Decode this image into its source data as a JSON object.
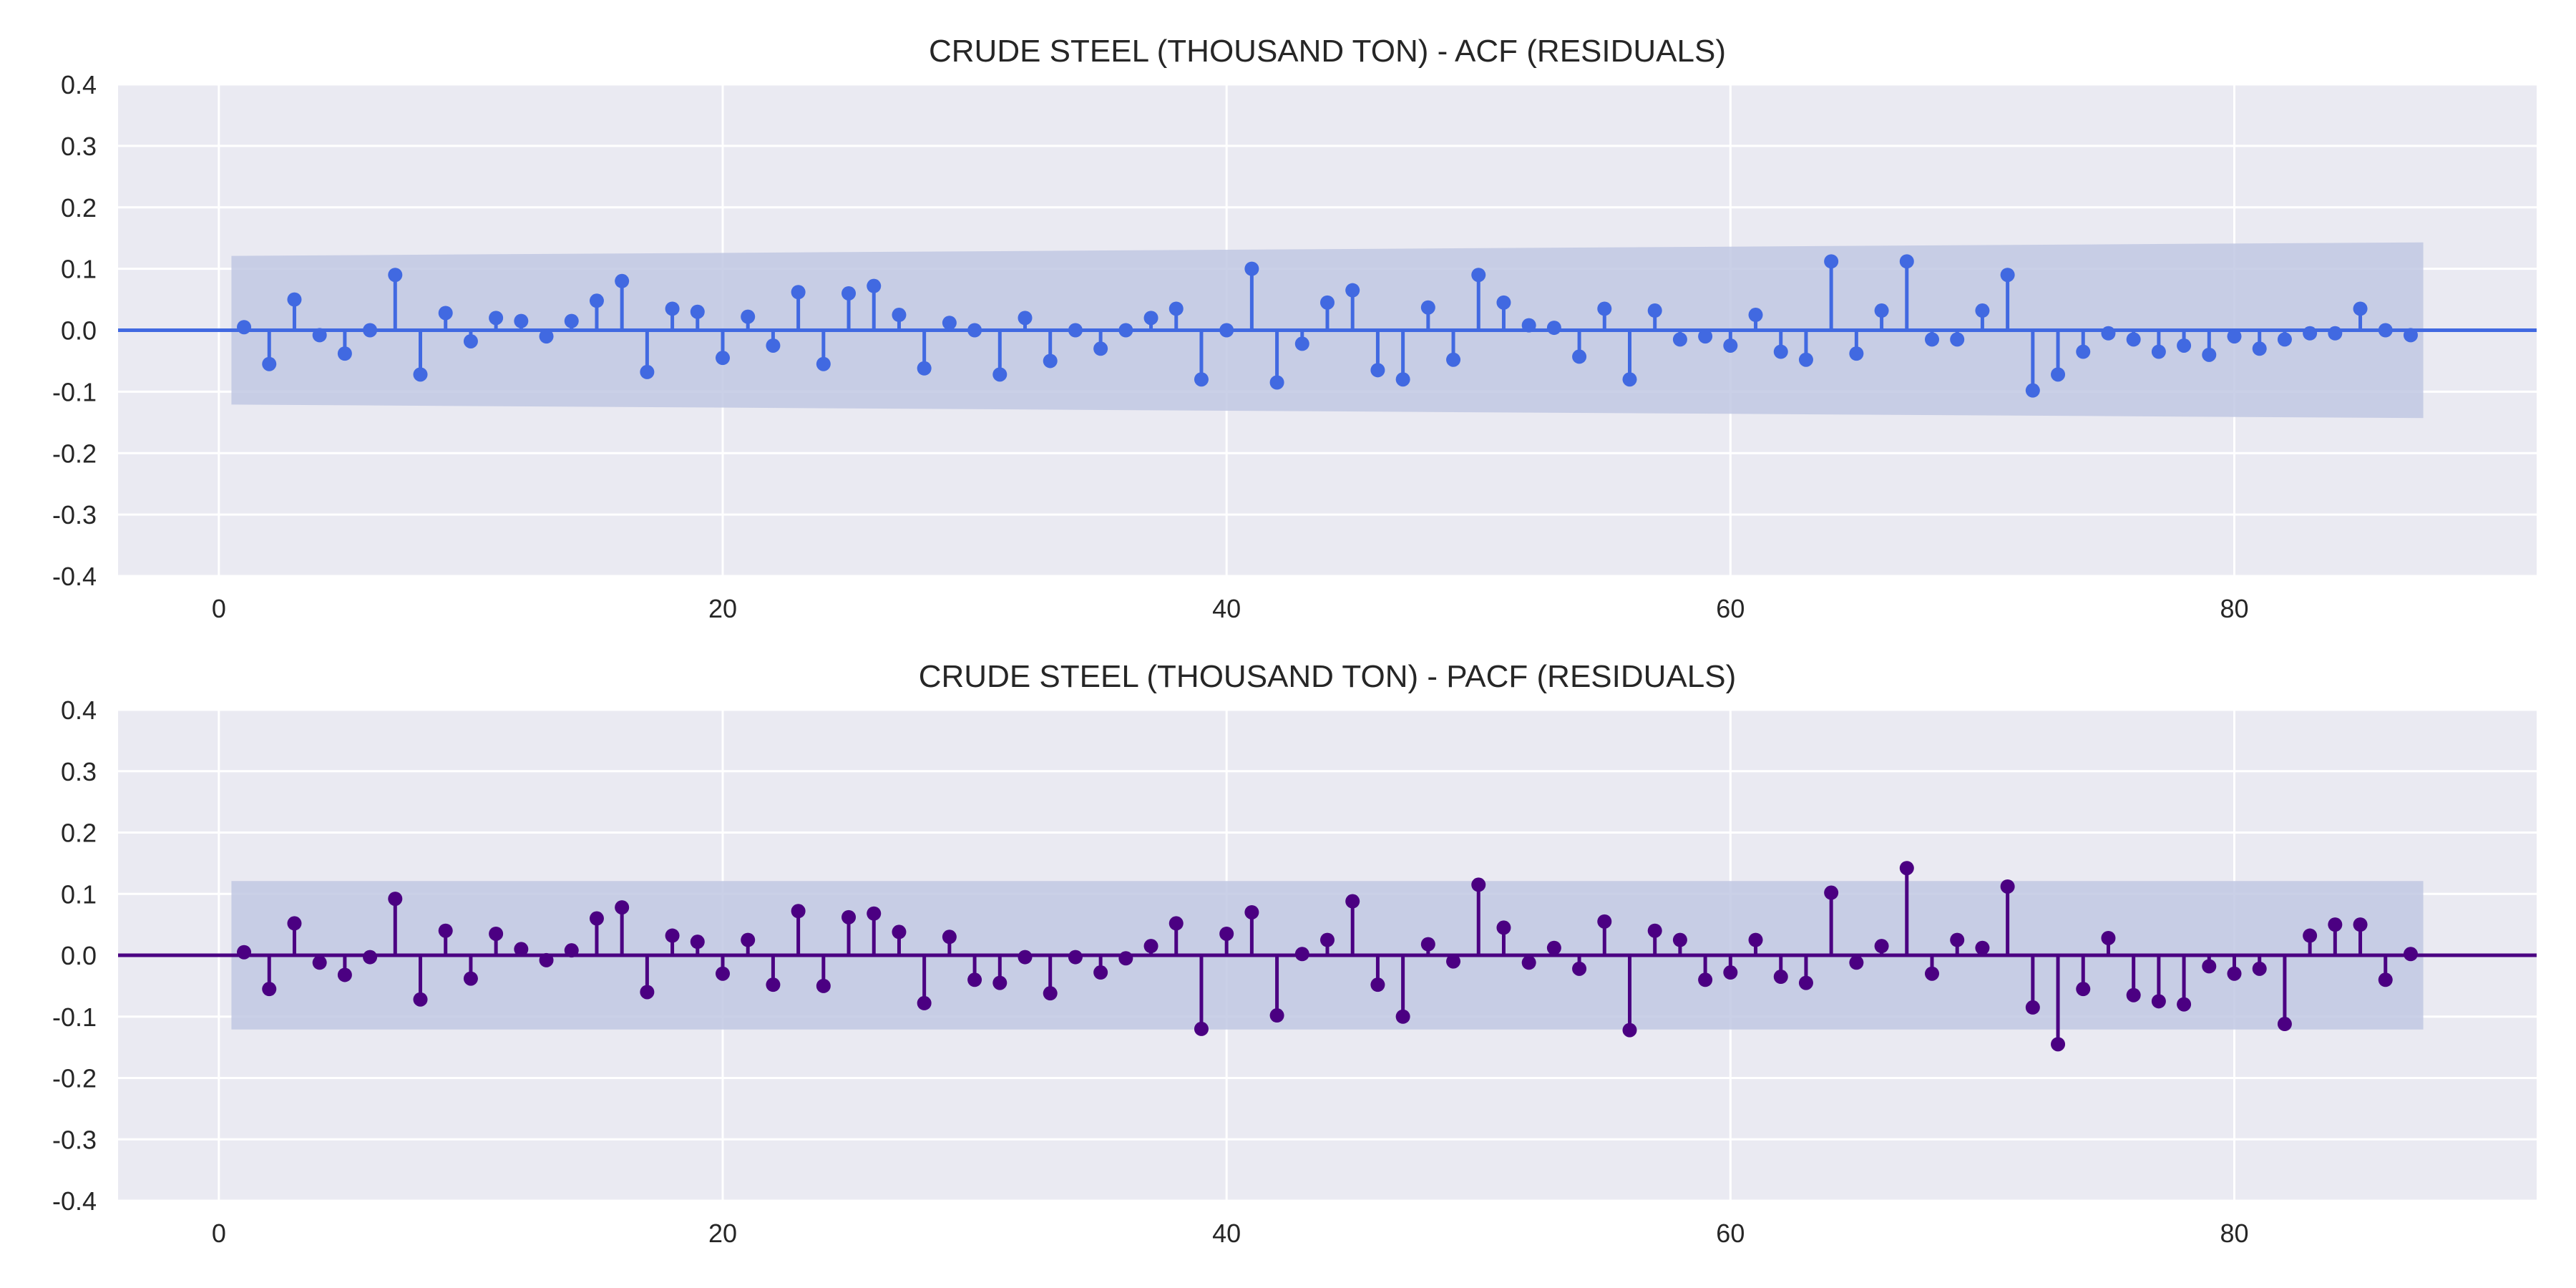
{
  "chart_data": [
    {
      "type": "stem",
      "title": "CRUDE STEEL (THOUSAND TON) - ACF (RESIDUALS)",
      "color": "#4169e1",
      "band_color": "#c1c8e3",
      "background": "#eaeaf2",
      "xlim": [
        -4,
        92
      ],
      "ylim": [
        -0.4,
        0.4
      ],
      "xticks": [
        0,
        20,
        40,
        60,
        80
      ],
      "yticks": [
        -0.4,
        -0.3,
        -0.2,
        -0.1,
        0.0,
        0.1,
        0.2,
        0.3,
        0.4
      ],
      "ytick_labels": [
        "-0.4",
        "-0.3",
        "-0.2",
        "-0.1",
        "0.0",
        "0.1",
        "0.2",
        "0.3",
        "0.4"
      ],
      "grid": true,
      "confidence_band": {
        "x_start": 0.5,
        "x_end": 87.5,
        "upper_start": 0.121,
        "upper_end": 0.143,
        "lower_start": -0.121,
        "lower_end": -0.143
      },
      "lags": [
        1,
        2,
        3,
        4,
        5,
        6,
        7,
        8,
        9,
        10,
        11,
        12,
        13,
        14,
        15,
        16,
        17,
        18,
        19,
        20,
        21,
        22,
        23,
        24,
        25,
        26,
        27,
        28,
        29,
        30,
        31,
        32,
        33,
        34,
        35,
        36,
        37,
        38,
        39,
        40,
        41,
        42,
        43,
        44,
        45,
        46,
        47,
        48,
        49,
        50,
        51,
        52,
        53,
        54,
        55,
        56,
        57,
        58,
        59,
        60,
        61,
        62,
        63,
        64,
        65,
        66,
        67,
        68,
        69,
        70,
        71,
        72,
        73,
        74,
        75,
        76,
        77,
        78,
        79,
        80,
        81,
        82,
        83,
        84,
        85,
        86,
        87
      ],
      "values": [
        0.005,
        -0.055,
        0.05,
        -0.008,
        -0.038,
        0.0,
        0.09,
        -0.072,
        0.028,
        -0.018,
        0.02,
        0.015,
        -0.01,
        0.015,
        0.048,
        0.08,
        -0.068,
        0.035,
        0.03,
        -0.045,
        0.022,
        -0.025,
        0.062,
        -0.055,
        0.06,
        0.072,
        0.025,
        -0.062,
        0.012,
        0.0,
        -0.072,
        0.02,
        -0.05,
        0.0,
        -0.03,
        0.0,
        0.02,
        0.035,
        -0.08,
        0.0,
        0.1,
        -0.085,
        -0.022,
        0.045,
        0.065,
        -0.065,
        -0.08,
        0.037,
        -0.048,
        0.09,
        0.045,
        0.008,
        0.004,
        -0.043,
        0.035,
        -0.08,
        0.032,
        -0.015,
        -0.01,
        -0.025,
        0.025,
        -0.035,
        -0.048,
        0.112,
        -0.038,
        0.032,
        0.112,
        -0.015,
        -0.015,
        0.032,
        0.09,
        -0.098,
        -0.072,
        -0.035,
        -0.005,
        -0.015,
        -0.035,
        -0.025,
        -0.04,
        -0.01,
        -0.03,
        -0.015,
        -0.005,
        -0.005,
        0.035,
        0.0,
        -0.008
      ]
    },
    {
      "type": "stem",
      "title": "CRUDE STEEL (THOUSAND TON) - PACF (RESIDUALS)",
      "color": "#4b0082",
      "band_color": "#c1c8e3",
      "background": "#eaeaf2",
      "xlim": [
        -4,
        92
      ],
      "ylim": [
        -0.4,
        0.4
      ],
      "xticks": [
        0,
        20,
        40,
        60,
        80
      ],
      "yticks": [
        -0.4,
        -0.3,
        -0.2,
        -0.1,
        0.0,
        0.1,
        0.2,
        0.3,
        0.4
      ],
      "ytick_labels": [
        "-0.4",
        "-0.3",
        "-0.2",
        "-0.1",
        "0.0",
        "0.1",
        "0.2",
        "0.3",
        "0.4"
      ],
      "grid": true,
      "confidence_band": {
        "x_start": 0.5,
        "x_end": 87.5,
        "upper_start": 0.121,
        "upper_end": 0.121,
        "lower_start": -0.121,
        "lower_end": -0.121
      },
      "lags": [
        1,
        2,
        3,
        4,
        5,
        6,
        7,
        8,
        9,
        10,
        11,
        12,
        13,
        14,
        15,
        16,
        17,
        18,
        19,
        20,
        21,
        22,
        23,
        24,
        25,
        26,
        27,
        28,
        29,
        30,
        31,
        32,
        33,
        34,
        35,
        36,
        37,
        38,
        39,
        40,
        41,
        42,
        43,
        44,
        45,
        46,
        47,
        48,
        49,
        50,
        51,
        52,
        53,
        54,
        55,
        56,
        57,
        58,
        59,
        60,
        61,
        62,
        63,
        64,
        65,
        66,
        67,
        68,
        69,
        70,
        71,
        72,
        73,
        74,
        75,
        76,
        77,
        78,
        79,
        80,
        81,
        82,
        83,
        84,
        85,
        86,
        87
      ],
      "values": [
        0.005,
        -0.055,
        0.052,
        -0.012,
        -0.032,
        -0.003,
        0.092,
        -0.072,
        0.04,
        -0.038,
        0.035,
        0.01,
        -0.008,
        0.008,
        0.06,
        0.078,
        -0.06,
        0.032,
        0.022,
        -0.03,
        0.025,
        -0.048,
        0.072,
        -0.05,
        0.062,
        0.068,
        0.038,
        -0.078,
        0.03,
        -0.04,
        -0.045,
        -0.003,
        -0.062,
        -0.003,
        -0.028,
        -0.005,
        0.015,
        0.052,
        -0.12,
        0.035,
        0.07,
        -0.098,
        0.002,
        0.025,
        0.088,
        -0.048,
        -0.1,
        0.018,
        -0.01,
        0.115,
        0.045,
        -0.012,
        0.012,
        -0.022,
        0.055,
        -0.122,
        0.04,
        0.025,
        -0.04,
        -0.028,
        0.025,
        -0.035,
        -0.045,
        0.102,
        -0.012,
        0.015,
        0.142,
        -0.03,
        0.025,
        0.012,
        0.112,
        -0.085,
        -0.145,
        -0.055,
        0.028,
        -0.065,
        -0.075,
        -0.08,
        -0.018,
        -0.03,
        -0.022,
        -0.112,
        0.032,
        0.05,
        0.05,
        -0.04,
        0.002
      ]
    }
  ]
}
